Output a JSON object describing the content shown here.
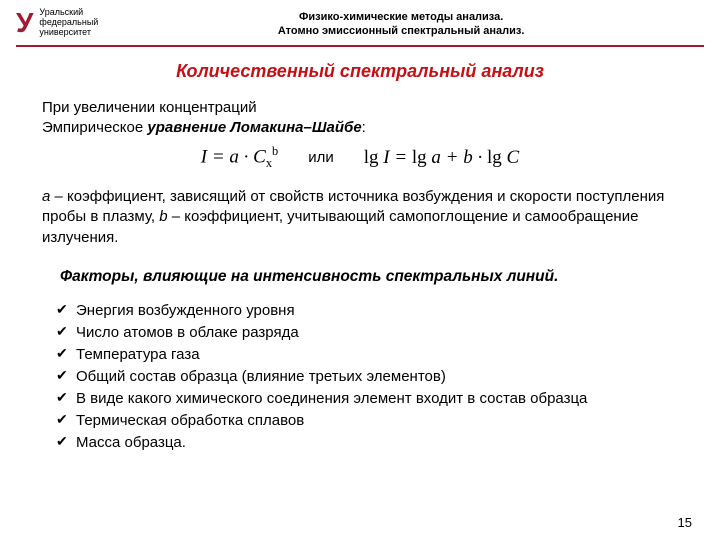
{
  "header": {
    "logo_letter": "У",
    "logo_line1": "Уральский",
    "logo_line2": "федеральный",
    "logo_line3": "университет",
    "title_line1": "Физико-химические методы анализа.",
    "title_line2": "Атомно эмиссионный спектральный анализ."
  },
  "title": "Количественный спектральный анализ",
  "intro_line1": "При увеличении концентраций",
  "intro_line2_prefix": "Эмпирическое ",
  "intro_line2_bold": "уравнение Ломакина–Шайбе",
  "intro_line2_suffix": ":",
  "eq_or": "или",
  "coef_text1": " – коэффициент, зависящий от свойств источника возбуждения и скорости поступления пробы в плазму, ",
  "coef_text2": " – коэффициент, учитывающий самопоглощение и самообращение излучения.",
  "factors_title": "Факторы, влияющие на интенсивность спектральных линий.",
  "factors": {
    "f1": "Энергия возбужденного уровня",
    "f2": "Число атомов в облаке разряда",
    "f3": "Температура газа",
    "f4": "Общий состав образца (влияние третьих элементов)",
    "f5": "В виде какого химического соединения элемент входит в состав образца",
    "f6": "Термическая обработка сплавов",
    "f7": "Масса образца."
  },
  "page_number": "15"
}
